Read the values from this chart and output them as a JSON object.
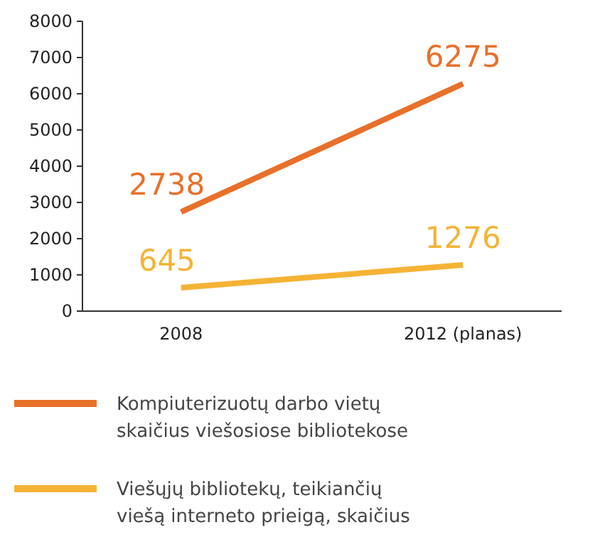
{
  "chart_data": {
    "type": "line",
    "categories": [
      "2008",
      "2012 (planas)"
    ],
    "series": [
      {
        "name": "Kompiuterizuotų darbo vietų skaičius viešosiose bibliotekose",
        "color": "#e8702a",
        "values": [
          2738,
          6275
        ]
      },
      {
        "name": "Viešųjų bibliotekų, teikiančių viešą interneto prieigą, skaičius",
        "color": "#f5b335",
        "values": [
          645,
          1276
        ]
      }
    ],
    "ylim": [
      0,
      8000
    ],
    "yticks": [
      0,
      1000,
      2000,
      3000,
      4000,
      5000,
      6000,
      7000,
      8000
    ],
    "grid": false,
    "legend": "bottom",
    "data_labels": true,
    "marker": "none",
    "line_style": "solid"
  }
}
